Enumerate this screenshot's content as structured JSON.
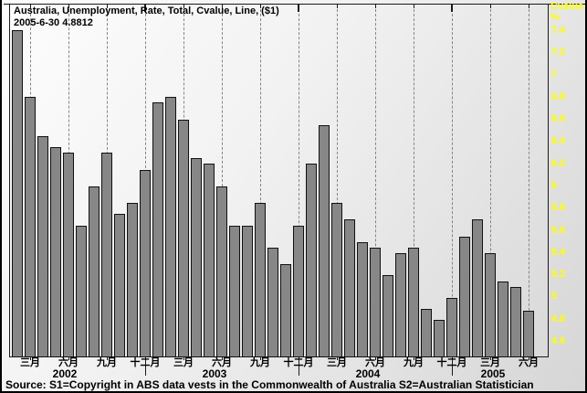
{
  "header": {
    "title": "Australia, Unemployment, Rate, Total, Cvalue, Line, ($1)",
    "subtitle": "2005-6-30 4.8812"
  },
  "right_axis": {
    "unit_label": "Cvalue",
    "percent_label": "%",
    "tick_labels": [
      "7.4",
      "7.2",
      "7",
      "6.8",
      "6.6",
      "6.4",
      "6.2",
      "6",
      "5.8",
      "5.6",
      "5.4",
      "5.2",
      "5",
      "4.8",
      "4.6"
    ]
  },
  "x_axis": {
    "quarter_labels": [
      "三月",
      "六月",
      "九月",
      "十二月",
      "三月",
      "六月",
      "九月",
      "十二月",
      "三月",
      "六月",
      "九月",
      "十二月",
      "三月",
      "六月"
    ],
    "year_labels": [
      "2002",
      "2003",
      "2004",
      "2005"
    ]
  },
  "source": "Source: S1=Copyright in ABS data vests in the Commonwealth of Australia S2=Australian Statistician",
  "colors": {
    "bar_fill": "#878787",
    "bar_border": "#111111",
    "grid": "#858585",
    "axis_text": "#ffff00",
    "text": "#000000"
  },
  "chart_data": {
    "type": "bar",
    "title": "Australia, Unemployment, Rate, Total, Cvalue, Line, ($1)",
    "last_observation": {
      "date": "2005-6-30",
      "value": 4.8812
    },
    "ylabel": "%",
    "ylim": [
      4.46,
      7.64
    ],
    "y_ticks": [
      7.4,
      7.2,
      7.0,
      6.8,
      6.6,
      6.4,
      6.2,
      6.0,
      5.8,
      5.6,
      5.4,
      5.2,
      5.0,
      4.8,
      4.6
    ],
    "grid": "vertical dashed quarterly",
    "legend_position": "none",
    "x": [
      "2002-02",
      "2002-03",
      "2002-04",
      "2002-05",
      "2002-06",
      "2002-07",
      "2002-08",
      "2002-09",
      "2002-10",
      "2002-11",
      "2002-12",
      "2003-01",
      "2003-02",
      "2003-03",
      "2003-04",
      "2003-05",
      "2003-06",
      "2003-07",
      "2003-08",
      "2003-09",
      "2003-10",
      "2003-11",
      "2003-12",
      "2004-01",
      "2004-02",
      "2004-03",
      "2004-04",
      "2004-05",
      "2004-06",
      "2004-07",
      "2004-08",
      "2004-09",
      "2004-10",
      "2004-11",
      "2004-12",
      "2005-01",
      "2005-02",
      "2005-03",
      "2005-04",
      "2005-05",
      "2005-06"
    ],
    "values": [
      7.4,
      6.8,
      6.45,
      6.35,
      6.3,
      5.65,
      6.0,
      6.3,
      5.75,
      5.85,
      6.15,
      6.75,
      6.8,
      6.6,
      6.25,
      6.2,
      6.0,
      5.65,
      5.65,
      5.85,
      5.45,
      5.3,
      5.65,
      6.2,
      6.55,
      5.85,
      5.7,
      5.5,
      5.45,
      5.2,
      5.4,
      5.45,
      4.9,
      4.8,
      5.0,
      5.55,
      5.7,
      5.4,
      5.15,
      5.1,
      4.88
    ],
    "quarter_tick_labels": [
      "三月",
      "六月",
      "九月",
      "十二月"
    ],
    "years": [
      "2002",
      "2003",
      "2004",
      "2005"
    ]
  }
}
